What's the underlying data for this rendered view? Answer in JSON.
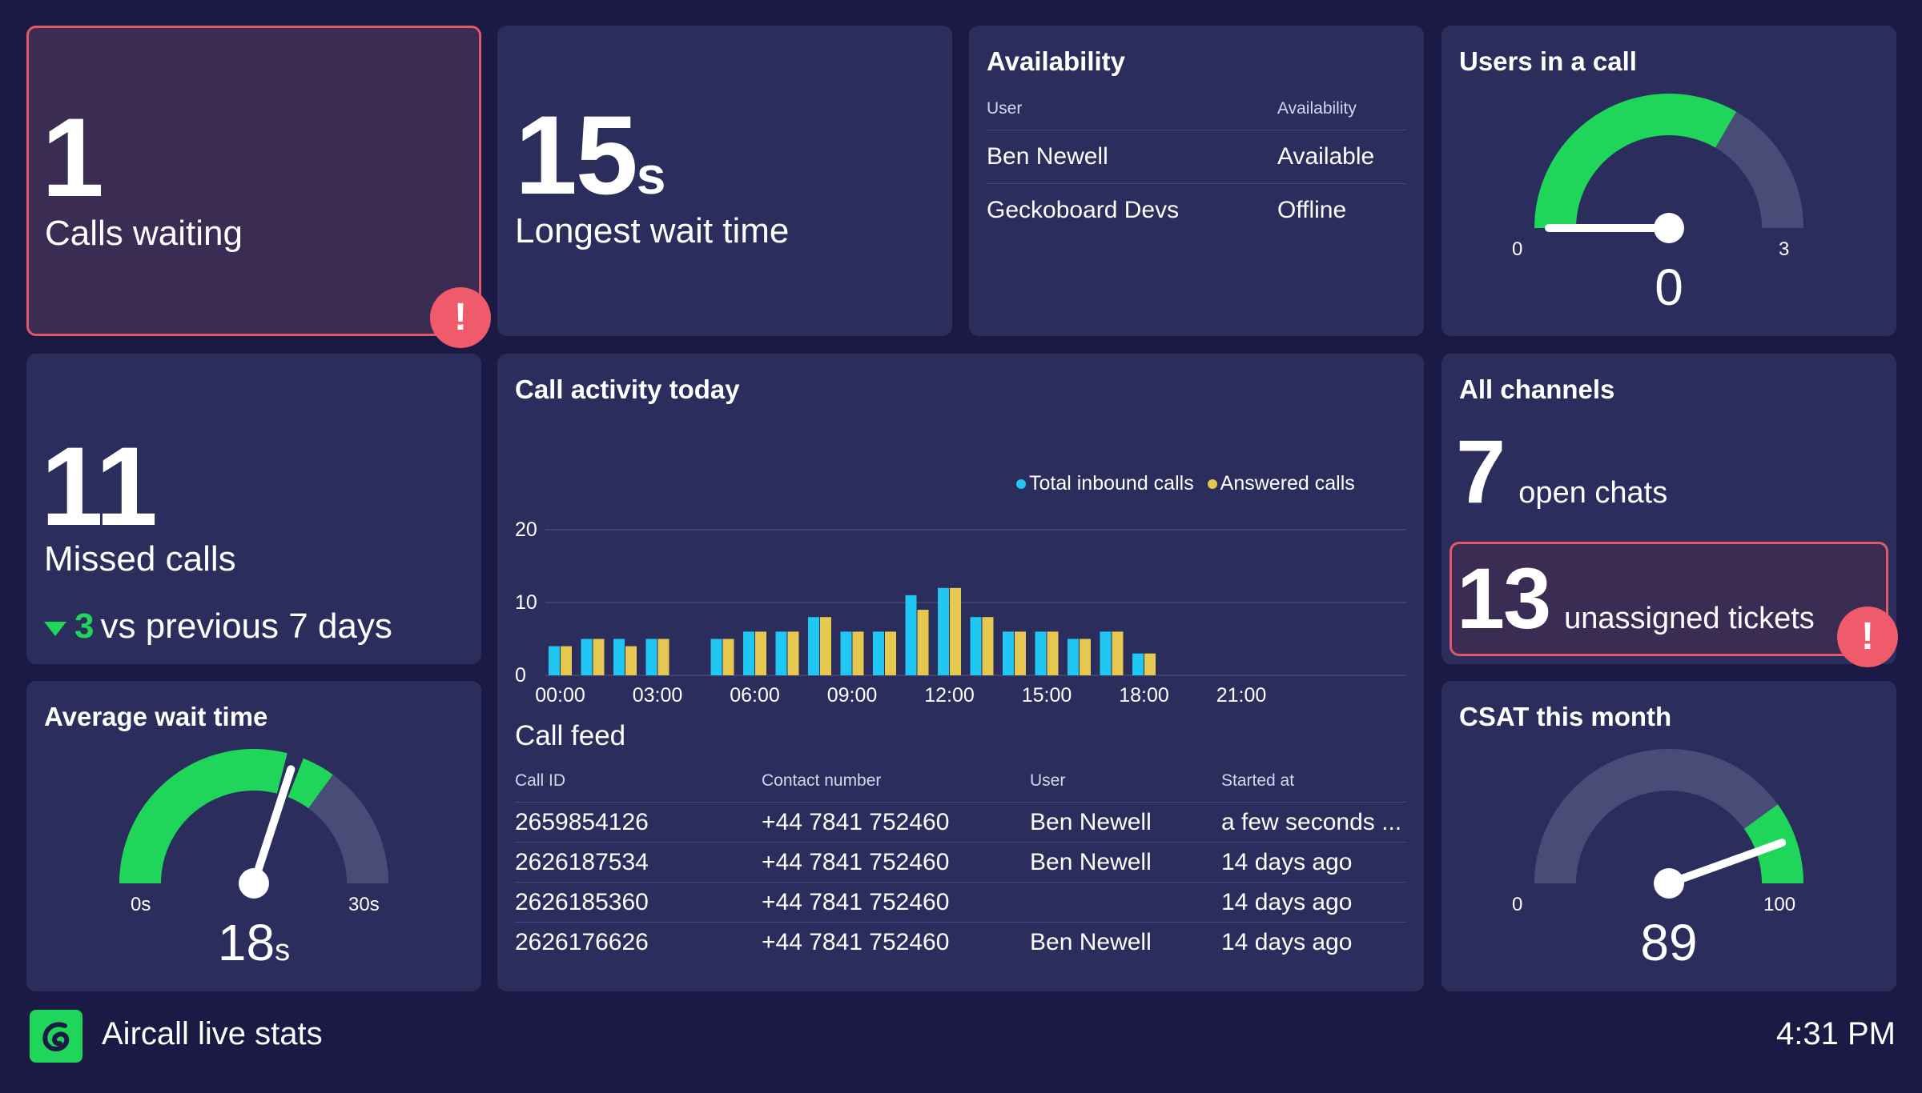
{
  "colors": {
    "background": "#1b1a44",
    "tile": "#2b2d5c",
    "alert_tile": "#3b2c53",
    "alert_border": "#e2576a",
    "green": "#1fd65b",
    "cyan": "#1fc7f2",
    "yellow": "#e6c74f",
    "gauge_track": "#4a4c78"
  },
  "calls_waiting": {
    "value": "1",
    "label": "Calls waiting",
    "alert_icon": "!"
  },
  "longest_wait": {
    "value": "15",
    "unit": "s",
    "label": "Longest wait time"
  },
  "availability": {
    "title": "Availability",
    "columns": [
      "User",
      "Availability"
    ],
    "rows": [
      {
        "user": "Ben Newell",
        "status": "Available"
      },
      {
        "user": "Geckoboard Devs",
        "status": "Offline"
      }
    ]
  },
  "users_in_call": {
    "title": "Users in a call",
    "min": "0",
    "max": "3",
    "value": "0",
    "fraction": 0.0,
    "green_fraction": 0.667
  },
  "missed_calls": {
    "value": "11",
    "label": "Missed calls",
    "trend_icon": "triangle-down-icon",
    "delta": "3",
    "comparison": "vs previous 7 days"
  },
  "avg_wait": {
    "title": "Average wait time",
    "min": "0s",
    "max": "30s",
    "value": "18",
    "unit": "s",
    "fraction": 0.6,
    "green_fraction": 0.7
  },
  "call_activity": {
    "title": "Call activity today",
    "legend": [
      "Total inbound calls",
      "Answered calls"
    ]
  },
  "chart_data": {
    "type": "bar",
    "title": "Call activity today",
    "x_tick_labels": [
      "00:00",
      "03:00",
      "06:00",
      "09:00",
      "12:00",
      "15:00",
      "18:00",
      "21:00"
    ],
    "y_tick_labels": [
      "0",
      "10",
      "20"
    ],
    "ylim": [
      0,
      20
    ],
    "legend_position": "top-right",
    "grid": true,
    "series": [
      {
        "name": "Total inbound calls",
        "color": "#1fc7f2",
        "values": [
          4,
          5,
          5,
          5,
          0,
          5,
          6,
          6,
          8,
          6,
          6,
          11,
          12,
          8,
          6,
          6,
          5,
          6,
          3,
          0,
          0,
          0,
          0,
          0
        ]
      },
      {
        "name": "Answered calls",
        "color": "#e6c74f",
        "values": [
          4,
          5,
          4,
          5,
          0,
          5,
          6,
          6,
          8,
          6,
          6,
          9,
          12,
          8,
          6,
          6,
          5,
          6,
          3,
          0,
          0,
          0,
          0,
          0
        ]
      }
    ]
  },
  "call_feed": {
    "title": "Call feed",
    "columns": [
      "Call ID",
      "Contact number",
      "User",
      "Started at"
    ],
    "rows": [
      [
        "2659854126",
        "+44 7841 752460",
        "Ben Newell",
        "a few seconds ..."
      ],
      [
        "2626187534",
        "+44 7841 752460",
        "Ben Newell",
        "14 days ago"
      ],
      [
        "2626185360",
        "+44 7841 752460",
        "",
        "14 days ago"
      ],
      [
        "2626176626",
        "+44 7841 752460",
        "Ben Newell",
        "14 days ago"
      ]
    ]
  },
  "all_channels": {
    "title": "All channels",
    "open_chats_value": "7",
    "open_chats_label": "open chats",
    "tickets_value": "13",
    "tickets_label": "unassigned tickets",
    "alert_icon": "!"
  },
  "csat": {
    "title": "CSAT this month",
    "min": "0",
    "max": "100",
    "value": "89",
    "fraction": 0.89,
    "green_from": 0.8
  },
  "footer": {
    "app_name": "Aircall live stats",
    "time": "4:31 PM",
    "logo_icon": "aircall-logo-icon"
  }
}
